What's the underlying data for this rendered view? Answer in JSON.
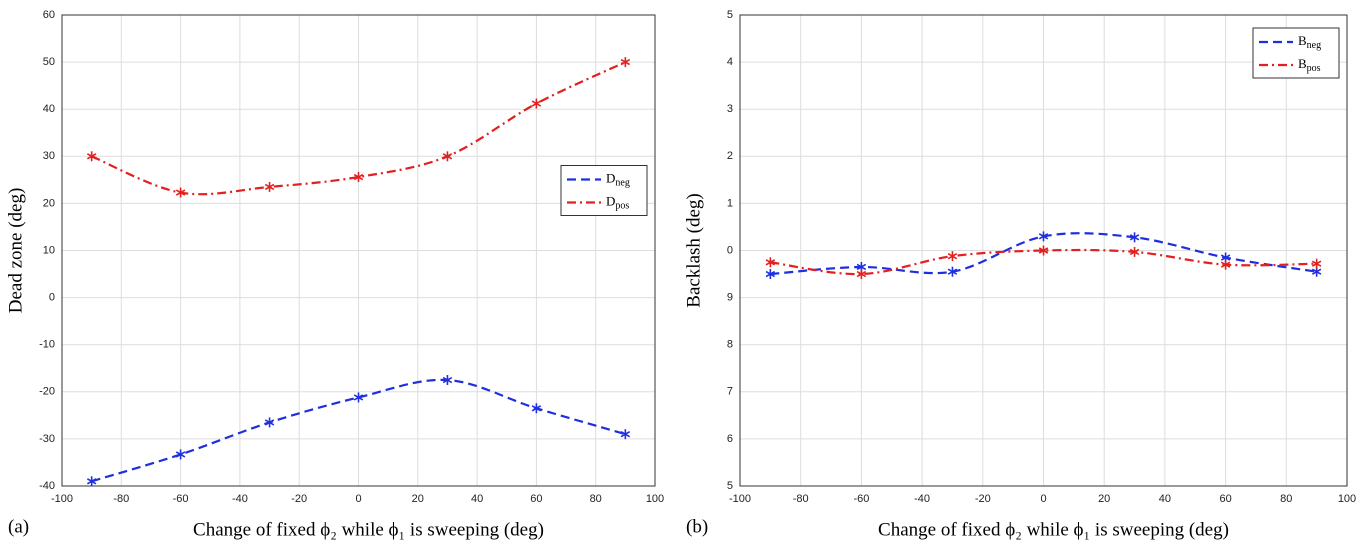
{
  "chart_data": [
    {
      "type": "line",
      "panel": "(a)",
      "ylabel": "Dead zone (deg)",
      "xlabel": "Change of fixed ϕ₂ while ϕ₁ is sweeping (deg)",
      "x": [
        -90,
        -60,
        -30,
        0,
        30,
        60,
        90
      ],
      "series": [
        {
          "name": "D",
          "subscript": "neg",
          "color": "#1f2fe0",
          "dash": "dashed",
          "values": [
            -39,
            -33.3,
            -26.5,
            -21.2,
            -17.5,
            -23.5,
            -29
          ]
        },
        {
          "name": "D",
          "subscript": "pos",
          "color": "#e51e1e",
          "dash": "dashdot",
          "values": [
            30,
            22.3,
            23.5,
            25.6,
            30,
            41.2,
            50
          ]
        }
      ],
      "xlim": [
        -100,
        100
      ],
      "xticks": [
        -100,
        -80,
        -60,
        -40,
        -20,
        0,
        20,
        40,
        60,
        80,
        100
      ],
      "ylim": [
        -40,
        60
      ],
      "yticks": [
        -40,
        -30,
        -20,
        -10,
        0,
        10,
        20,
        30,
        40,
        50,
        60
      ],
      "grid": true,
      "legend": "right"
    },
    {
      "type": "line",
      "panel": "(b)",
      "ylabel": "Backlash (deg)",
      "xlabel": "Change of fixed ϕ₂ while ϕ₁ is sweeping (deg)",
      "x": [
        -90,
        -60,
        -30,
        0,
        30,
        60,
        90
      ],
      "series": [
        {
          "name": "B",
          "subscript": "neg",
          "color": "#1f2fe0",
          "dash": "dashed",
          "values": [
            9.5,
            9.65,
            9.55,
            10.3,
            10.28,
            9.85,
            9.55
          ]
        },
        {
          "name": "B",
          "subscript": "pos",
          "color": "#e51e1e",
          "dash": "dashdot",
          "values": [
            9.75,
            9.5,
            9.88,
            10.0,
            9.97,
            9.7,
            9.72
          ]
        }
      ],
      "xlim": [
        -100,
        100
      ],
      "xticks": [
        -100,
        -80,
        -60,
        -40,
        -20,
        0,
        20,
        40,
        60,
        80,
        100
      ],
      "ylim": [
        5,
        15
      ],
      "yticks": [
        5,
        6,
        7,
        8,
        9,
        {
          "value": 10,
          "label": "0"
        },
        {
          "value": 11,
          "label": "1"
        },
        {
          "value": 12,
          "label": "2"
        },
        {
          "value": 13,
          "label": "3"
        },
        {
          "value": 14,
          "label": "4"
        },
        {
          "value": 15,
          "label": "5"
        }
      ],
      "grid": true,
      "legend": "upper right"
    }
  ]
}
